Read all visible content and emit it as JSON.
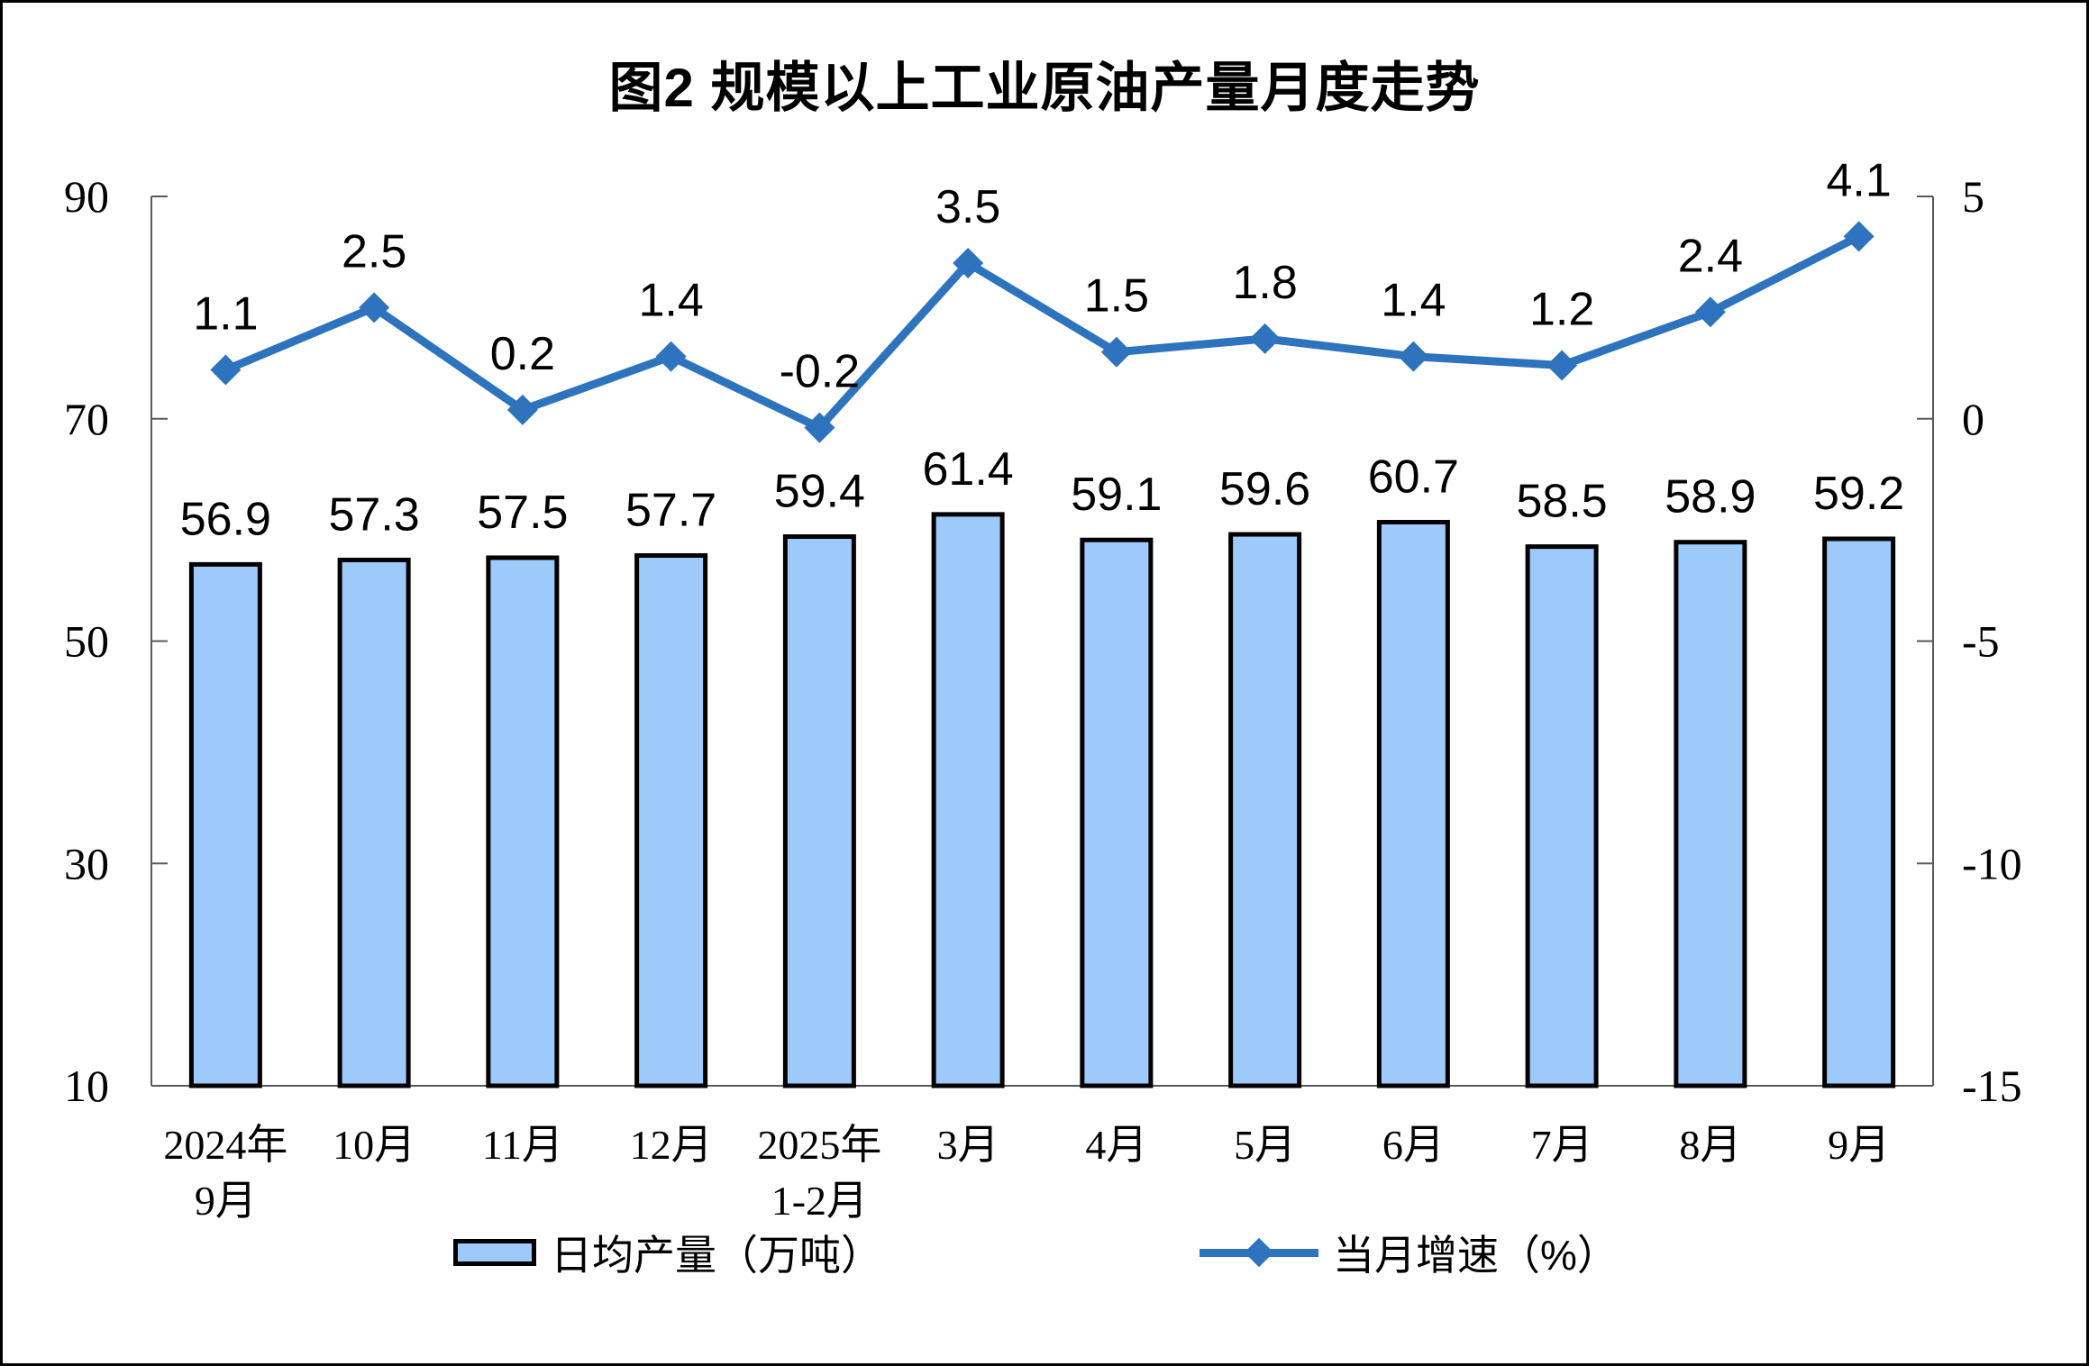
{
  "page": {
    "title": "图2 规模以上工业原油产量月度走势"
  },
  "legend": {
    "bars": "日均产量（万吨）",
    "line": "当月增速（%）"
  },
  "colors": {
    "bar_fill": "#9DCAFB",
    "bar_border": "#000000",
    "line": "#2E73BE",
    "axis": "#595959",
    "text": "#000000"
  },
  "chart_data": {
    "type": "bar",
    "title": "图2 规模以上工业原油产量月度走势",
    "categories": [
      [
        "2024年",
        "9月"
      ],
      [
        "10月"
      ],
      [
        "11月"
      ],
      [
        "12月"
      ],
      [
        "2025年",
        "1-2月"
      ],
      [
        "3月"
      ],
      [
        "4月"
      ],
      [
        "5月"
      ],
      [
        "6月"
      ],
      [
        "7月"
      ],
      [
        "8月"
      ],
      [
        "9月"
      ]
    ],
    "series": [
      {
        "name": "日均产量（万吨）",
        "type": "bar",
        "axis": "left",
        "values": [
          56.9,
          57.3,
          57.5,
          57.7,
          59.4,
          61.4,
          59.1,
          59.6,
          60.7,
          58.5,
          58.9,
          59.2
        ]
      },
      {
        "name": "当月增速（%）",
        "type": "line",
        "axis": "right",
        "values": [
          1.1,
          2.5,
          0.2,
          1.4,
          -0.2,
          3.5,
          1.5,
          1.8,
          1.4,
          1.2,
          2.4,
          4.1
        ]
      }
    ],
    "left_axis": {
      "min": 10,
      "max": 90,
      "ticks": [
        90,
        70,
        50,
        30,
        10
      ]
    },
    "right_axis": {
      "min": -15,
      "max": 5,
      "ticks": [
        5,
        0,
        -5,
        -10,
        -15
      ]
    },
    "data_labels": true,
    "grid": false,
    "legend_position": "bottom"
  }
}
